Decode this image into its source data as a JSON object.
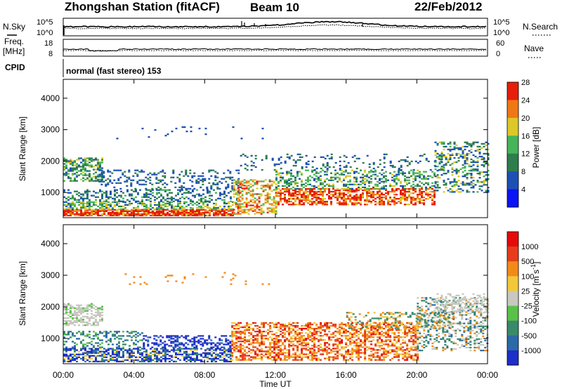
{
  "header": {
    "title": "Zhongshan Station (fitACF)",
    "beam": "Beam 10",
    "date": "22/Feb/2012"
  },
  "strip_panels": {
    "nsky_label": "N.Sky",
    "nsky_ticks": [
      "10^5",
      "10^0"
    ],
    "nsearch_label": "N.Search",
    "nsearch_ticks": [
      "10^5",
      "10^0"
    ],
    "freq_label_line1": "Freq.",
    "freq_label_line2": "[MHz]",
    "freq_ticks": [
      "18",
      "8"
    ],
    "nave_label": "Nave",
    "nave_ticks": [
      "60",
      "0"
    ],
    "cpid_label": "CPID",
    "cpid_value": "normal (fast stereo) 153"
  },
  "chart_data": [
    {
      "type": "heatmap",
      "name": "power",
      "ylabel": "Slant Range [km]",
      "xlabel": "Time UT",
      "y_ticks": [
        1000,
        2000,
        3000,
        4000
      ],
      "ylim": [
        200,
        4600
      ],
      "x_ticks": [
        "00:00",
        "04:00",
        "08:00",
        "12:00",
        "16:00",
        "20:00",
        "00:00"
      ],
      "xlim_hours": [
        0,
        24
      ],
      "colorbar": {
        "label": "Power [dB]",
        "tick_labels": [
          "4",
          "8",
          "12",
          "16",
          "20",
          "24",
          "28"
        ],
        "colors": [
          "#0a14f5",
          "#1e50b4",
          "#2e7d4c",
          "#46b45a",
          "#dcc828",
          "#f07814",
          "#e61e0a"
        ]
      }
    },
    {
      "type": "heatmap",
      "name": "velocity",
      "ylabel": "Slant Range [km]",
      "xlabel": "Time UT",
      "y_ticks": [
        1000,
        2000,
        3000,
        4000
      ],
      "ylim": [
        200,
        4600
      ],
      "x_ticks": [
        "00:00",
        "04:00",
        "08:00",
        "12:00",
        "16:00",
        "20:00",
        "00:00"
      ],
      "xlim_hours": [
        0,
        24
      ],
      "colorbar": {
        "label": "Velocity [m s",
        "label_sup": "-1",
        "label_end": "]",
        "tick_labels": [
          "1000",
          "500",
          "100",
          "25",
          "-25",
          "-100",
          "-500",
          "-1000"
        ],
        "colors": [
          "#1e2ec8",
          "#2a6aa8",
          "#3a8a6a",
          "#58c248",
          "#c8c8c0",
          "#f2c83a",
          "#f28a1a",
          "#e63c1a",
          "#e60a0a"
        ]
      }
    }
  ],
  "x_axis": {
    "tick_labels": [
      "00:00",
      "04:00",
      "08:00",
      "12:00",
      "16:00",
      "20:00",
      "00:00"
    ],
    "label": "Time UT"
  }
}
